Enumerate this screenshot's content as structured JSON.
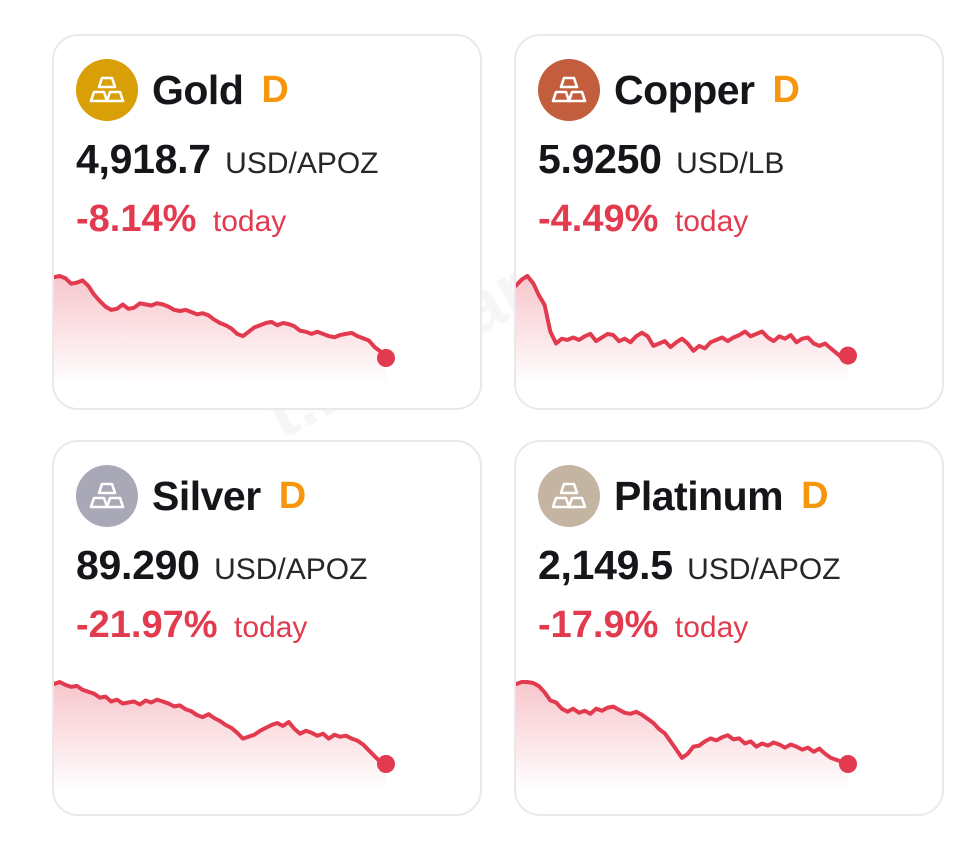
{
  "watermark": "t.me/bankrotto",
  "accent_colors": {
    "negative": "#e23a4e",
    "badge": "#f5960c"
  },
  "cards": [
    {
      "name": "Gold",
      "badge": "D",
      "price": "4,918.7",
      "unit": "USD/APOZ",
      "change": "-8.14%",
      "period": "today",
      "icon": "gold-bars-icon",
      "icon_color": "#d89f06",
      "trend": "down",
      "sparkline": [
        6,
        5,
        7,
        12,
        11,
        9,
        14,
        22,
        28,
        33,
        36,
        35,
        31,
        35,
        34,
        30,
        31,
        32,
        30,
        31,
        33,
        36,
        37,
        36,
        38,
        40,
        39,
        41,
        45,
        48,
        50,
        53,
        58,
        60,
        56,
        52,
        50,
        48,
        47,
        50,
        48,
        49,
        51,
        55,
        56,
        58,
        56,
        58,
        60,
        61,
        59,
        58,
        57,
        60,
        62,
        64,
        70,
        74,
        80
      ]
    },
    {
      "name": "Copper",
      "badge": "D",
      "price": "5.9250",
      "unit": "USD/LB",
      "change": "-4.49%",
      "period": "today",
      "icon": "copper-ingots-icon",
      "icon_color": "#c25e3d",
      "trend": "down",
      "sparkline": [
        10,
        5,
        2,
        8,
        18,
        26,
        48,
        58,
        54,
        55,
        53,
        55,
        52,
        50,
        56,
        53,
        50,
        51,
        56,
        54,
        57,
        52,
        49,
        52,
        60,
        58,
        56,
        61,
        57,
        54,
        58,
        64,
        60,
        62,
        57,
        55,
        53,
        56,
        53,
        51,
        48,
        52,
        50,
        48,
        53,
        56,
        52,
        54,
        51,
        57,
        54,
        53,
        58,
        60,
        58,
        62,
        66,
        70,
        68
      ]
    },
    {
      "name": "Silver",
      "badge": "D",
      "price": "89.290",
      "unit": "USD/APOZ",
      "change": "-21.97%",
      "period": "today",
      "icon": "silver-bars-icon",
      "icon_color": "#a9a8b6",
      "trend": "down",
      "sparkline": [
        2,
        0,
        3,
        5,
        4,
        8,
        10,
        12,
        16,
        15,
        20,
        18,
        22,
        21,
        20,
        23,
        19,
        21,
        18,
        20,
        22,
        25,
        24,
        28,
        30,
        34,
        36,
        33,
        37,
        40,
        44,
        47,
        52,
        58,
        56,
        54,
        50,
        47,
        44,
        42,
        45,
        41,
        48,
        53,
        50,
        52,
        55,
        53,
        58,
        54,
        56,
        55,
        58,
        60,
        64,
        70,
        76,
        82,
        84
      ]
    },
    {
      "name": "Platinum",
      "badge": "D",
      "price": "2,149.5",
      "unit": "USD/APOZ",
      "change": "-17.9%",
      "period": "today",
      "icon": "platinum-bars-icon",
      "icon_color": "#c4b4a2",
      "trend": "down",
      "sparkline": [
        2,
        0,
        0,
        1,
        4,
        10,
        18,
        20,
        26,
        29,
        26,
        30,
        28,
        31,
        26,
        28,
        25,
        24,
        27,
        30,
        31,
        29,
        32,
        36,
        40,
        46,
        50,
        58,
        66,
        74,
        70,
        63,
        62,
        58,
        55,
        57,
        54,
        52,
        56,
        55,
        60,
        58,
        63,
        60,
        62,
        59,
        61,
        64,
        61,
        63,
        66,
        64,
        68,
        65,
        70,
        74,
        76,
        78,
        80
      ]
    }
  ]
}
